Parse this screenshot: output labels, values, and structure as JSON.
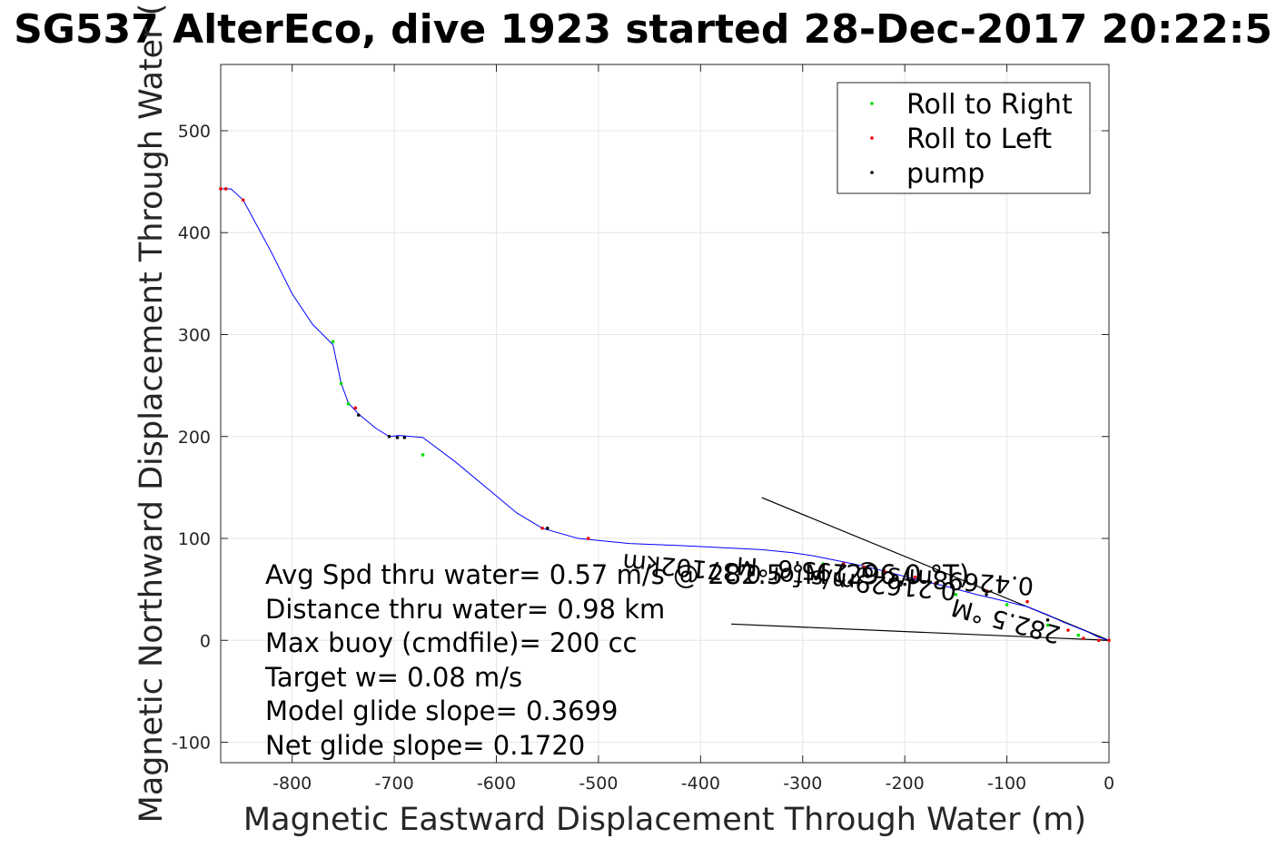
{
  "chart_data": {
    "type": "line",
    "title": "SG537 AlterEco, dive 1923 started 28-Dec-2017 20:22:5",
    "xlabel": "Magnetic Eastward Displacement Through Water (m)",
    "ylabel": "Magnetic Northward Displacement Through Water (",
    "xlim": [
      -870,
      0
    ],
    "ylim": [
      -120,
      565
    ],
    "xticks": [
      -800,
      -700,
      -600,
      -500,
      -400,
      -300,
      -200,
      -100,
      0
    ],
    "yticks": [
      -100,
      0,
      100,
      200,
      300,
      400,
      500
    ],
    "grid": true,
    "legend": {
      "placement": "top-right",
      "entries": [
        {
          "label": "Roll to Right",
          "color": "#00dd00"
        },
        {
          "label": "Roll to Left",
          "color": "#ee0000"
        },
        {
          "label": "pump",
          "color": "#000000"
        }
      ]
    },
    "series": [
      {
        "name": "track",
        "color": "#0000ff",
        "x": [
          0,
          -10,
          -20,
          -30,
          -45,
          -60,
          -80,
          -100,
          -130,
          -160,
          -190,
          -220,
          -250,
          -275,
          -290,
          -310,
          -340,
          -380,
          -420,
          -470,
          -520,
          -555,
          -580,
          -610,
          -640,
          -672,
          -695,
          -705,
          -718,
          -735,
          -745,
          -752,
          -760,
          -765,
          -770,
          -775,
          -780,
          -800,
          -820,
          -848,
          -860,
          -870
        ],
        "y": [
          0,
          3,
          8,
          12,
          18,
          25,
          33,
          38,
          45,
          53,
          60,
          68,
          75,
          80,
          83,
          86,
          89,
          91,
          93,
          95,
          100,
          110,
          125,
          150,
          175,
          199,
          201,
          200,
          208,
          222,
          233,
          252,
          290,
          295,
          300,
          305,
          310,
          340,
          380,
          432,
          443,
          443
        ]
      },
      {
        "name": "Roll to Right",
        "color": "#00dd00",
        "x": [
          -672,
          -745,
          -752,
          -760,
          -280,
          -150,
          -100,
          -60,
          -30
        ],
        "y": [
          182,
          232,
          252,
          293,
          75,
          45,
          35,
          15,
          5
        ],
        "y_note": "marker positions"
      },
      {
        "name": "Roll to Left",
        "color": "#ee0000",
        "x": [
          -870,
          -865,
          -848,
          -738,
          -555,
          -510,
          -260,
          -240,
          -220,
          -190,
          -170,
          -120,
          -80,
          -40,
          -25,
          -10,
          0
        ],
        "y": [
          443,
          443,
          432,
          228,
          110,
          100,
          75,
          72,
          68,
          62,
          56,
          48,
          38,
          10,
          2,
          0,
          0
        ]
      },
      {
        "name": "pump",
        "color": "#000000",
        "x": [
          -735,
          -705,
          -697,
          -690,
          -550,
          -200,
          -120,
          -60
        ],
        "y": [
          221,
          200,
          199,
          199,
          110,
          55,
          45,
          20
        ]
      }
    ],
    "annotations": [
      {
        "text": "Avg Spd thru water=  0.57 m/s @ 282.5 °M (296.0 °T)"
      },
      {
        "text": "Distance thru water=  0.98 km"
      },
      {
        "text": "Max buoy (cmdfile)= 200 cc"
      },
      {
        "text": "Target w= 0.08 m/s"
      },
      {
        "text": "Model glide slope= 0.3699"
      },
      {
        "text": "Net glide slope= 0.1720"
      }
    ],
    "rotated_labels": [
      {
        "text": "0.42698m/s @ 295.6 °M",
        "rotation_deg": 184
      },
      {
        "text": "0.21629m/s for 0.37102km",
        "rotation_deg": 185
      },
      {
        "text": "282.5 °M",
        "rotation_deg": 195
      }
    ],
    "reference_lines": [
      {
        "x": [
          0,
          -340
        ],
        "y": [
          0,
          140
        ]
      },
      {
        "x": [
          0,
          -370
        ],
        "y": [
          0,
          16
        ]
      }
    ]
  }
}
